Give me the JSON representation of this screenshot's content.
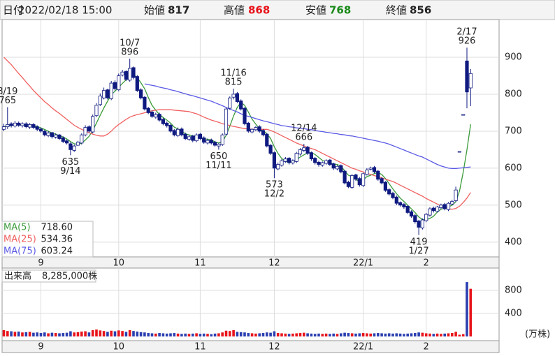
{
  "chart_data": {
    "type": "candlestick",
    "header": {
      "date_label": "日付",
      "date": "2022/02/18 15:00",
      "open_label": "始値",
      "open": 817,
      "high_label": "高値",
      "high": 868,
      "low_label": "安値",
      "low": 768,
      "close_label": "終値",
      "close": 856
    },
    "categories": [
      null,
      null,
      null,
      null,
      null,
      null,
      null,
      null,
      null,
      null,
      "9",
      null,
      null,
      null,
      null,
      null,
      null,
      null,
      null,
      null,
      null,
      null,
      null,
      null,
      null,
      null,
      null,
      null,
      null,
      null,
      null,
      "10",
      null,
      null,
      null,
      null,
      null,
      null,
      null,
      null,
      null,
      null,
      null,
      null,
      null,
      null,
      null,
      null,
      null,
      null,
      null,
      null,
      null,
      "11",
      null,
      null,
      null,
      null,
      null,
      null,
      null,
      null,
      null,
      null,
      null,
      null,
      null,
      null,
      null,
      null,
      null,
      null,
      null,
      "12",
      null,
      null,
      null,
      null,
      null,
      null,
      null,
      null,
      null,
      null,
      null,
      null,
      null,
      null,
      null,
      null,
      null,
      null,
      null,
      null,
      null,
      null,
      null,
      "22/1",
      null,
      null,
      null,
      null,
      null,
      null,
      null,
      null,
      null,
      null,
      null,
      null,
      null,
      null,
      null,
      null,
      "2",
      null,
      null,
      null,
      null,
      null,
      null,
      null,
      null,
      null,
      null,
      null,
      null
    ],
    "open": [
      705,
      712,
      720,
      714,
      722,
      715,
      720,
      711,
      718,
      712,
      706,
      700,
      688,
      696,
      684,
      690,
      682,
      674,
      666,
      648,
      662,
      668,
      690,
      712,
      698,
      742,
      772,
      790,
      812,
      788,
      832,
      812,
      852,
      862,
      838,
      872,
      848,
      812,
      792,
      762,
      752,
      738,
      746,
      732,
      722,
      716,
      702,
      688,
      706,
      692,
      678,
      687,
      674,
      692,
      682,
      668,
      676,
      670,
      660,
      664,
      692,
      762,
      792,
      802,
      782,
      762,
      722,
      698,
      704,
      712,
      702,
      692,
      662,
      642,
      598,
      608,
      618,
      627,
      614,
      618,
      638,
      648,
      657,
      642,
      627,
      616,
      608,
      613,
      622,
      612,
      598,
      607,
      592,
      562,
      548,
      582,
      572,
      553,
      583,
      597,
      602,
      592,
      572,
      562,
      542,
      532,
      522,
      507,
      502,
      497,
      482,
      472,
      457,
      438,
      458,
      473,
      492,
      483,
      493,
      502,
      488,
      503,
      512,
      645,
      745,
      890,
      817
    ],
    "high": [
      720,
      765,
      724,
      728,
      726,
      724,
      724,
      722,
      722,
      716,
      710,
      703,
      700,
      698,
      694,
      692,
      686,
      678,
      670,
      664,
      674,
      694,
      716,
      716,
      745,
      776,
      802,
      818,
      815,
      836,
      838,
      856,
      866,
      864,
      896,
      875,
      852,
      816,
      795,
      766,
      756,
      750,
      750,
      736,
      726,
      720,
      706,
      710,
      710,
      696,
      690,
      690,
      694,
      695,
      686,
      680,
      680,
      674,
      668,
      694,
      764,
      794,
      815,
      806,
      786,
      765,
      725,
      708,
      714,
      716,
      706,
      695,
      665,
      645,
      615,
      624,
      630,
      630,
      624,
      644,
      654,
      666,
      660,
      645,
      630,
      620,
      618,
      624,
      625,
      615,
      608,
      610,
      595,
      566,
      584,
      585,
      576,
      588,
      600,
      604,
      606,
      595,
      576,
      565,
      546,
      536,
      526,
      510,
      506,
      500,
      486,
      476,
      460,
      464,
      479,
      494,
      496,
      498,
      504,
      506,
      508,
      514,
      550,
      645,
      745,
      926,
      868
    ],
    "low": [
      700,
      706,
      710,
      710,
      712,
      710,
      708,
      706,
      706,
      700,
      696,
      686,
      684,
      680,
      680,
      676,
      668,
      664,
      635,
      644,
      660,
      664,
      686,
      696,
      694,
      738,
      768,
      786,
      786,
      784,
      810,
      808,
      848,
      836,
      834,
      840,
      806,
      786,
      756,
      746,
      736,
      734,
      726,
      716,
      710,
      696,
      686,
      684,
      686,
      676,
      674,
      670,
      670,
      676,
      666,
      664,
      664,
      658,
      650,
      660,
      688,
      758,
      786,
      776,
      756,
      716,
      696,
      694,
      700,
      696,
      686,
      656,
      636,
      573,
      594,
      604,
      614,
      610,
      610,
      614,
      634,
      644,
      636,
      620,
      610,
      604,
      604,
      609,
      606,
      595,
      594,
      586,
      556,
      546,
      544,
      566,
      550,
      549,
      580,
      594,
      586,
      566,
      556,
      536,
      526,
      516,
      500,
      496,
      490,
      476,
      466,
      450,
      419,
      434,
      454,
      469,
      480,
      480,
      490,
      486,
      484,
      500,
      508,
      645,
      745,
      762,
      768
    ],
    "close": [
      712,
      718,
      715,
      722,
      716,
      720,
      712,
      718,
      710,
      705,
      700,
      690,
      695,
      685,
      690,
      680,
      672,
      668,
      650,
      660,
      670,
      690,
      710,
      700,
      740,
      770,
      795,
      810,
      790,
      830,
      815,
      850,
      860,
      840,
      870,
      845,
      810,
      790,
      760,
      750,
      740,
      745,
      730,
      720,
      715,
      700,
      690,
      705,
      690,
      680,
      685,
      675,
      690,
      680,
      670,
      675,
      668,
      662,
      665,
      690,
      760,
      790,
      800,
      780,
      760,
      720,
      700,
      705,
      710,
      700,
      690,
      660,
      640,
      600,
      610,
      620,
      625,
      615,
      620,
      640,
      650,
      655,
      640,
      625,
      615,
      610,
      615,
      620,
      610,
      600,
      605,
      590,
      560,
      550,
      580,
      570,
      555,
      585,
      595,
      600,
      590,
      570,
      560,
      540,
      530,
      520,
      505,
      500,
      495,
      480,
      470,
      455,
      440,
      460,
      475,
      490,
      485,
      495,
      500,
      490,
      505,
      510,
      541,
      645,
      745,
      806,
      856
    ],
    "high_dates": [
      null,
      "8/19",
      null,
      null,
      null,
      null,
      null,
      null,
      null,
      null,
      null,
      null,
      null,
      null,
      null,
      null,
      null,
      null,
      null,
      null,
      null,
      null,
      null,
      null,
      null,
      null,
      null,
      null,
      null,
      null,
      null,
      null,
      null,
      null,
      "10/7",
      null,
      null,
      null,
      null,
      null,
      null,
      null,
      null,
      null,
      null,
      null,
      null,
      null,
      null,
      null,
      null,
      null,
      null,
      null,
      null,
      null,
      null,
      null,
      null,
      null,
      null,
      null,
      "11/16",
      null,
      null,
      null,
      null,
      null,
      null,
      null,
      null,
      null,
      null,
      null,
      null,
      null,
      null,
      null,
      null,
      null,
      null,
      "12/14",
      null,
      null,
      null,
      null,
      null,
      null,
      null,
      null,
      null,
      null,
      null,
      null,
      null,
      null,
      null,
      null,
      null,
      null,
      null,
      null,
      null,
      null,
      null,
      null,
      null,
      null,
      null,
      null,
      null,
      null,
      null,
      null,
      null,
      null,
      null,
      null,
      null,
      null,
      null,
      null,
      null,
      null,
      null,
      "2/17",
      null
    ],
    "low_dates": [
      null,
      null,
      null,
      null,
      null,
      null,
      null,
      null,
      null,
      null,
      null,
      null,
      null,
      null,
      null,
      null,
      null,
      null,
      "9/14",
      null,
      null,
      null,
      null,
      null,
      null,
      null,
      null,
      null,
      null,
      null,
      null,
      null,
      null,
      null,
      null,
      null,
      null,
      null,
      null,
      null,
      null,
      null,
      null,
      null,
      null,
      null,
      null,
      null,
      null,
      null,
      null,
      null,
      null,
      null,
      null,
      null,
      null,
      null,
      "11/11",
      null,
      null,
      null,
      null,
      null,
      null,
      null,
      null,
      null,
      null,
      null,
      null,
      null,
      null,
      "12/2",
      null,
      null,
      null,
      null,
      null,
      null,
      null,
      null,
      null,
      null,
      null,
      null,
      null,
      null,
      null,
      null,
      null,
      null,
      null,
      null,
      null,
      null,
      null,
      null,
      null,
      null,
      null,
      null,
      null,
      null,
      null,
      null,
      null,
      null,
      null,
      null,
      null,
      null,
      "1/27",
      null,
      null,
      null,
      null,
      null,
      null,
      null,
      null,
      null,
      null,
      null,
      null,
      null,
      null
    ],
    "up_color": "#ffffff",
    "down_color": "#0f1a80",
    "edge_color": "#0f1a80",
    "series": [
      {
        "name": "MA(5)",
        "color": "#3a9a3a",
        "value_label": "718.60",
        "values": [
          712,
          715,
          715,
          717,
          717,
          718.2,
          717,
          717.6,
          715.2,
          713,
          709,
          704.6,
          700,
          695,
          692,
          688,
          684.4,
          679,
          672,
          666,
          664,
          667.6,
          676,
          686,
          702,
          722,
          743,
          763,
          781,
          799,
          808,
          819,
          829,
          839,
          847,
          853,
          845,
          831,
          815,
          791,
          770,
          757,
          745,
          737,
          730,
          722,
          711,
          706,
          700,
          693,
          690,
          687,
          684,
          682,
          680,
          678,
          676.6,
          671,
          668,
          672,
          689,
          713.4,
          741,
          764,
          778,
          770,
          752,
          733,
          719,
          707,
          701,
          693,
          680,
          658,
          640,
          626,
          619,
          614,
          618,
          624,
          630,
          636,
          641,
          642,
          637,
          629,
          621,
          617,
          614,
          611,
          610,
          605,
          593,
          581,
          577,
          570,
          563,
          568,
          577,
          581,
          585,
          588,
          583,
          572,
          558,
          544,
          531,
          519,
          510,
          500,
          490,
          480,
          468,
          461,
          460,
          464,
          470,
          481,
          489,
          492,
          495,
          500,
          509.2,
          538.2,
          589.2,
          649.4,
          718.6
        ]
      },
      {
        "name": "MA(25)",
        "color": "#f06060",
        "value_label": "534.36",
        "values": [
          900,
          890,
          880,
          868,
          856,
          845,
          833,
          822,
          810,
          800,
          790,
          780,
          772,
          763,
          755,
          748,
          740,
          732,
          724,
          716,
          710,
          705,
          700,
          696,
          692,
          689,
          687,
          687,
          692,
          700,
          710,
          718,
          725,
          732,
          738,
          742,
          745,
          747,
          750,
          753,
          755,
          757,
          758,
          758,
          758,
          758,
          757,
          756,
          755,
          754,
          753,
          750,
          747,
          743,
          738,
          734,
          730,
          727,
          724,
          720,
          718,
          715,
          713,
          711,
          709,
          707,
          706,
          705,
          705,
          705,
          705,
          705,
          702,
          698,
          693,
          688,
          683,
          678,
          673,
          668,
          664,
          660,
          656,
          653,
          650,
          645,
          640,
          635,
          630,
          625,
          620,
          615,
          610,
          605,
          600,
          597,
          593,
          590,
          586,
          583,
          580,
          577,
          574,
          570,
          567,
          564,
          559,
          554,
          549,
          544,
          539,
          534,
          529,
          524,
          518,
          513,
          508,
          503,
          498,
          494,
          490,
          489,
          491,
          497,
          507,
          519,
          534.36
        ]
      },
      {
        "name": "MA(75)",
        "color": "#5a5ae6",
        "value_label": "603.24",
        "values": [
          null,
          null,
          null,
          null,
          null,
          null,
          null,
          null,
          null,
          null,
          null,
          null,
          null,
          null,
          null,
          null,
          null,
          null,
          null,
          null,
          null,
          null,
          null,
          null,
          null,
          null,
          null,
          null,
          null,
          null,
          null,
          null,
          null,
          null,
          null,
          null,
          null,
          null,
          828,
          826,
          824,
          822,
          819,
          817,
          815,
          812,
          810,
          807,
          804,
          801,
          798,
          796,
          793,
          790,
          787,
          784,
          781,
          777,
          773,
          769,
          764,
          760,
          756,
          752,
          747,
          743,
          740,
          737,
          734,
          731,
          728,
          726,
          723,
          720,
          718,
          715,
          714,
          712,
          711,
          709,
          708,
          707,
          705,
          704,
          702,
          700,
          699,
          697,
          696,
          694,
          693,
          691,
          690,
          688,
          687,
          685,
          683,
          681,
          679,
          677,
          675,
          673,
          670,
          668,
          665,
          661,
          657,
          653,
          649,
          645,
          641,
          637,
          633,
          630,
          625,
          620,
          615,
          610,
          606,
          603,
          600,
          599,
          599,
          600,
          601,
          602,
          603.24
        ]
      }
    ],
    "ylim": [
      360,
      1002
    ],
    "yticks": [
      400,
      500,
      600,
      700,
      800,
      900
    ],
    "grid": true,
    "volume": {
      "label": "出来高",
      "value_label": "8,285,000株",
      "unit": "(万株)",
      "up_color": "#e8131a",
      "down_color": "#2b3fb0",
      "ylim": [
        0,
        1140
      ],
      "yticks": [
        400,
        800
      ],
      "values": [
        110,
        95,
        90,
        80,
        85,
        70,
        75,
        80,
        65,
        70,
        60,
        70,
        55,
        65,
        60,
        55,
        60,
        65,
        90,
        70,
        75,
        85,
        90,
        70,
        110,
        120,
        105,
        95,
        80,
        100,
        90,
        105,
        95,
        80,
        110,
        95,
        85,
        75,
        70,
        60,
        55,
        50,
        60,
        55,
        50,
        55,
        60,
        50,
        45,
        50,
        45,
        50,
        55,
        45,
        50,
        45,
        40,
        50,
        55,
        70,
        100,
        95,
        110,
        80,
        75,
        70,
        60,
        55,
        50,
        55,
        60,
        70,
        65,
        90,
        60,
        55,
        50,
        45,
        50,
        55,
        60,
        65,
        55,
        50,
        45,
        50,
        45,
        50,
        45,
        50,
        45,
        55,
        65,
        60,
        55,
        50,
        55,
        60,
        55,
        50,
        55,
        60,
        55,
        50,
        55,
        50,
        55,
        50,
        45,
        50,
        55,
        60,
        70,
        65,
        55,
        50,
        45,
        50,
        45,
        50,
        55,
        60,
        80,
        30,
        40,
        945,
        828.5
      ]
    }
  }
}
